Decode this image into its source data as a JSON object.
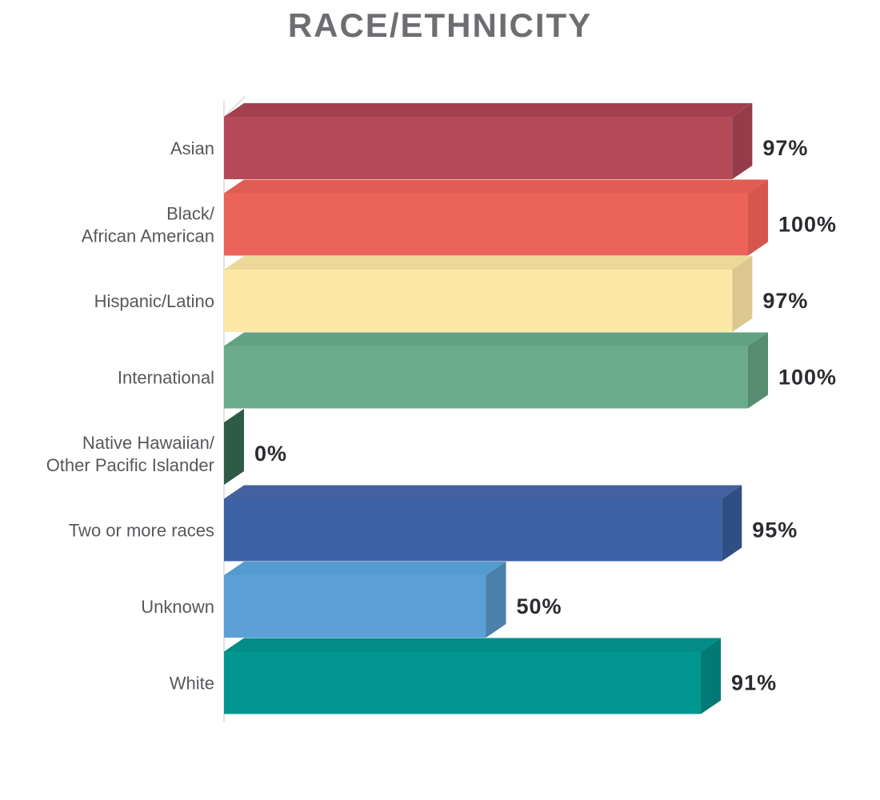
{
  "chart": {
    "title": "RACE/ETHNICITY"
  },
  "chart_data": {
    "type": "bar",
    "orientation": "horizontal",
    "title": "RACE/ETHNICITY",
    "categories": [
      "Asian",
      "Black/African American",
      "Hispanic/Latino",
      "International",
      "Native Hawaiian/Other Pacific Islander",
      "Two or more races",
      "Unknown",
      "White"
    ],
    "values": [
      97,
      100,
      97,
      100,
      0,
      95,
      50,
      91
    ],
    "value_labels": [
      "97%",
      "100%",
      "97%",
      "100%",
      "0%",
      "95%",
      "50%",
      "91%"
    ],
    "xlim": [
      0,
      100
    ],
    "grid": false,
    "legend": false,
    "effect": "3d-extruded-bars",
    "bars": [
      {
        "label_lines": [
          "Asian"
        ],
        "value": 97,
        "display": "97%",
        "colors": {
          "front": "#b44a58",
          "top": "#a34050",
          "side": "#953c4a"
        }
      },
      {
        "label_lines": [
          "Black/",
          "African American"
        ],
        "value": 100,
        "display": "100%",
        "colors": {
          "front": "#ec6459",
          "top": "#e05d53",
          "side": "#d5564d"
        }
      },
      {
        "label_lines": [
          "Hispanic/Latino"
        ],
        "value": 97,
        "display": "97%",
        "colors": {
          "front": "#fce9a8",
          "top": "#ecd99a",
          "side": "#dcc88e"
        }
      },
      {
        "label_lines": [
          "International"
        ],
        "value": 100,
        "display": "100%",
        "colors": {
          "front": "#6cab8b",
          "top": "#62a283",
          "side": "#568c70"
        }
      },
      {
        "label_lines": [
          "Native Hawaiian/",
          "Other Pacific Islander"
        ],
        "value": 0,
        "display": "0%",
        "colors": {
          "front": "#2e5b46",
          "top": "#2e5b46",
          "side": "#2e5b46"
        }
      },
      {
        "label_lines": [
          "Two or more races"
        ],
        "value": 95,
        "display": "95%",
        "colors": {
          "front": "#3d61a7",
          "top": "#42619e",
          "side": "#2e4e85"
        }
      },
      {
        "label_lines": [
          "Unknown"
        ],
        "value": 50,
        "display": "50%",
        "colors": {
          "front": "#5ba0d6",
          "top": "#549bd0",
          "side": "#4a80aa"
        }
      },
      {
        "label_lines": [
          "White"
        ],
        "value": 91,
        "display": "91%",
        "colors": {
          "front": "#029691",
          "top": "#018c87",
          "side": "#017a75"
        }
      }
    ],
    "style": {
      "title_color": "#6d6e71",
      "category_label_color": "#57585c",
      "value_label_color": "#2b2b30",
      "axis_color": "#d9d9d9",
      "background": "#ffffff"
    }
  }
}
